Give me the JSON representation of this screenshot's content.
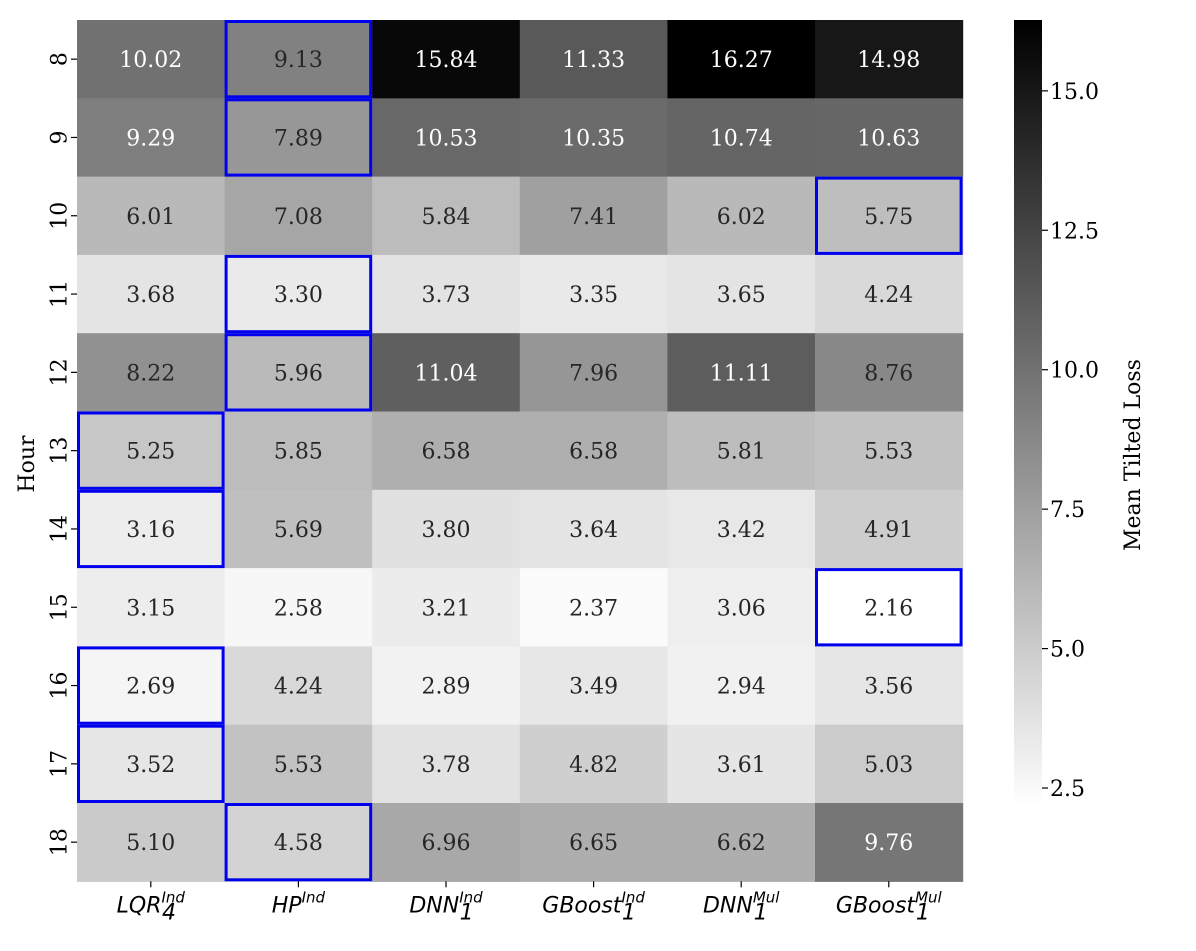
{
  "chart_data": {
    "type": "heatmap",
    "ylabel": "Hour",
    "colorbar_label": "Mean Tilted Loss",
    "columns": [
      {
        "base": "LQR",
        "sub": "4",
        "sup": "Ind"
      },
      {
        "base": "HP",
        "sub": "",
        "sup": "Ind"
      },
      {
        "base": "DNN",
        "sub": "1",
        "sup": "Ind"
      },
      {
        "base": "GBoost",
        "sub": "1",
        "sup": "Ind"
      },
      {
        "base": "DNN",
        "sub": "1",
        "sup": "Mul"
      },
      {
        "base": "GBoost",
        "sub": "1",
        "sup": "Mul"
      }
    ],
    "rows": [
      "8",
      "9",
      "10",
      "11",
      "12",
      "13",
      "14",
      "15",
      "16",
      "17",
      "18"
    ],
    "values": [
      [
        "10.02",
        "9.13",
        "15.84",
        "11.33",
        "16.27",
        "14.98"
      ],
      [
        "9.29",
        "7.89",
        "10.53",
        "10.35",
        "10.74",
        "10.63"
      ],
      [
        "6.01",
        "7.08",
        "5.84",
        "7.41",
        "6.02",
        "5.75"
      ],
      [
        "3.68",
        "3.30",
        "3.73",
        "3.35",
        "3.65",
        "4.24"
      ],
      [
        "8.22",
        "5.96",
        "11.04",
        "7.96",
        "11.11",
        "8.76"
      ],
      [
        "5.25",
        "5.85",
        "6.58",
        "6.58",
        "5.81",
        "5.53"
      ],
      [
        "3.16",
        "5.69",
        "3.80",
        "3.64",
        "3.42",
        "4.91"
      ],
      [
        "3.15",
        "2.58",
        "3.21",
        "2.37",
        "3.06",
        "2.16"
      ],
      [
        "2.69",
        "4.24",
        "2.89",
        "3.49",
        "2.94",
        "3.56"
      ],
      [
        "3.52",
        "5.53",
        "3.78",
        "4.82",
        "3.61",
        "5.03"
      ],
      [
        "5.10",
        "4.58",
        "6.96",
        "6.65",
        "6.62",
        "9.76"
      ]
    ],
    "highlighted_cells": [
      [
        0,
        1
      ],
      [
        1,
        1
      ],
      [
        2,
        5
      ],
      [
        3,
        1
      ],
      [
        4,
        1
      ],
      [
        5,
        0
      ],
      [
        6,
        0
      ],
      [
        7,
        5
      ],
      [
        8,
        0
      ],
      [
        9,
        0
      ],
      [
        10,
        1
      ]
    ],
    "colormap": "Greys",
    "vmin": 2.16,
    "vmax": 16.27,
    "colorbar_ticks": [
      "2.5",
      "5.0",
      "7.5",
      "10.0",
      "12.5",
      "15.0"
    ],
    "highlight_color": "#0000ee"
  }
}
